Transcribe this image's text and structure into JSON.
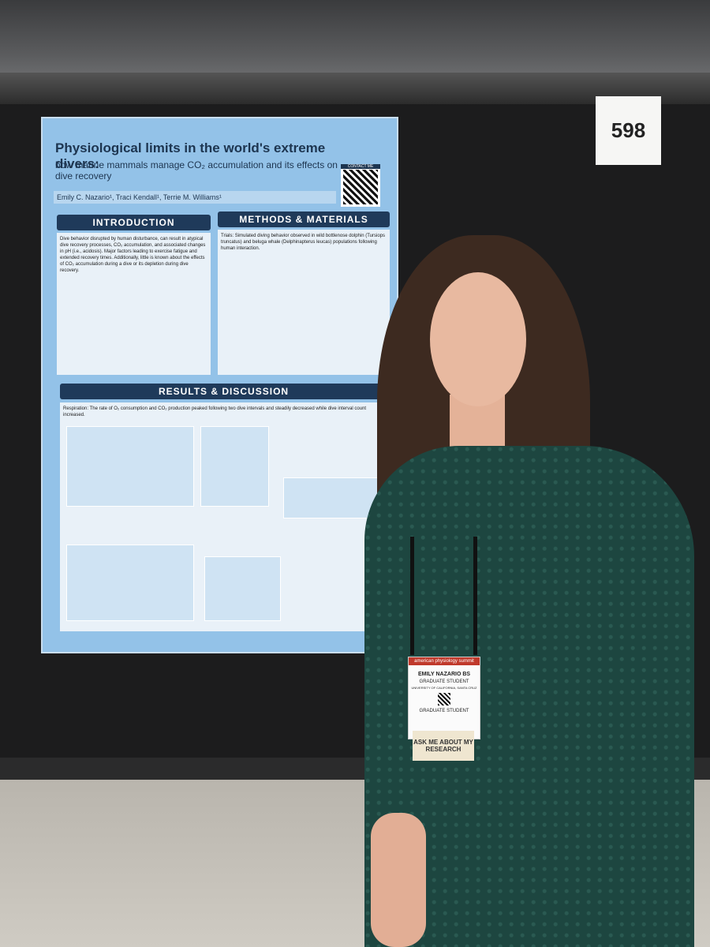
{
  "booth_number": "598",
  "poster": {
    "title": "Physiological limits in the world's extreme divers:",
    "subtitle": "how marine mammals manage CO₂ accumulation and its effects on dive recovery",
    "authors": "Emily C. Nazario¹, Traci Kendall¹, Terrie M. Williams¹",
    "contact": "CONTACT ME",
    "sections": [
      {
        "heading": "INTRODUCTION",
        "text": "Dive behavior disrupted by human disturbance, can result in atypical dive recovery processes, CO₂ accumulation, and associated changes in pH (i.e., acidosis). Major factors leading to exercise fatigue and extended recovery times. Additionally, little is known about the effects of CO₂ accumulation during a dive or its depletion during dive recovery."
      },
      {
        "heading": "METHODS & MATERIALS",
        "text": "Trials: Simulated diving behavior observed in wild bottlenose dolphin (Tursiops truncatus) and beluga whale (Delphinapterus leucas) populations following human interaction."
      },
      {
        "heading": "RESULTS & DISCUSSION",
        "text": "Respiration: The rate of O₂ consumption and CO₂ production peaked following two dive intervals and steadily decreased while dive interval count increased."
      }
    ]
  },
  "badge": {
    "event": "american physiology summit",
    "name": "EMILY NAZARIO BS",
    "role": "GRADUATE STUDENT",
    "institution": "UNIVERSITY OF CALIFORNIA, SANTA CRUZ",
    "category": "GRADUATE STUDENT",
    "tag": "ASK ME ABOUT MY RESEARCH"
  }
}
